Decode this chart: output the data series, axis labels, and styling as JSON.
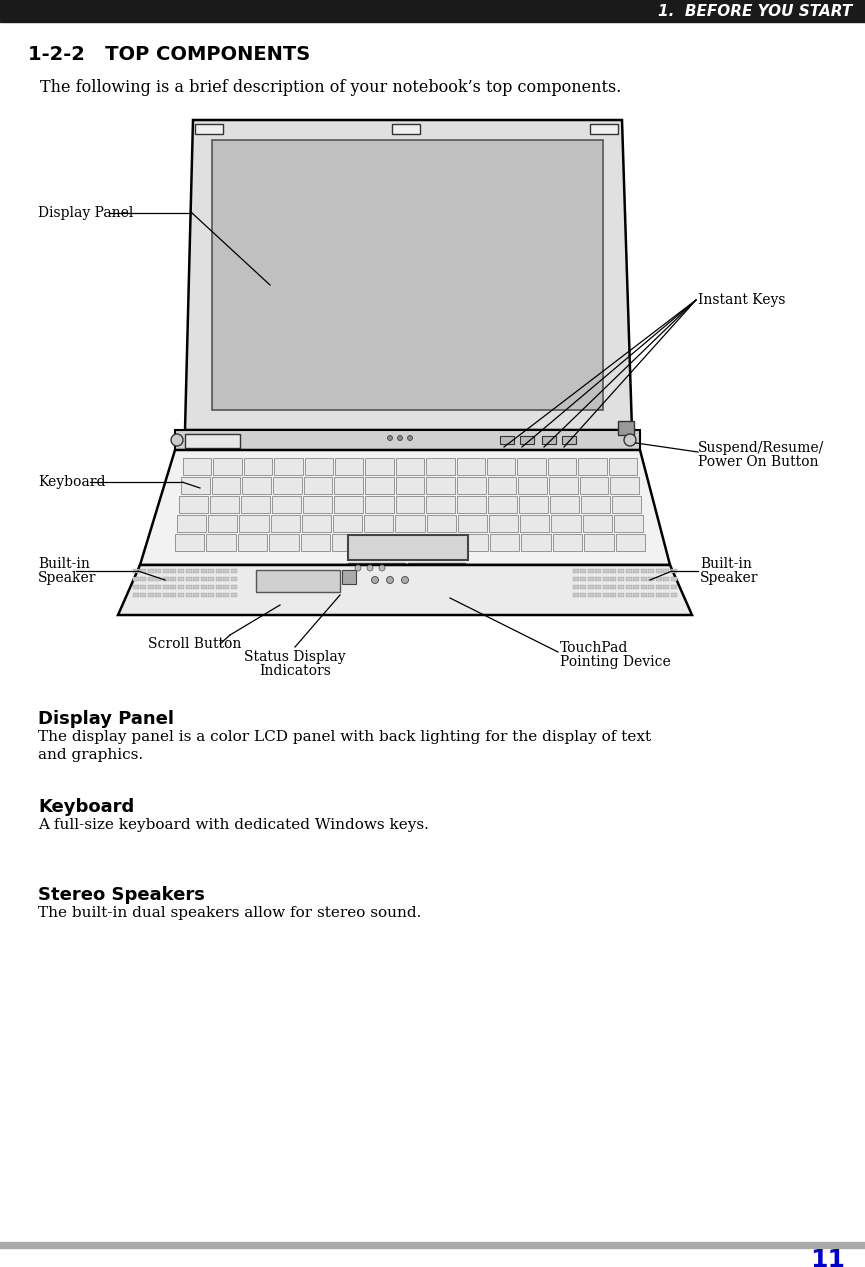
{
  "page_title": "1.  BEFORE YOU START",
  "section_title": "1-2-2   TOP COMPONENTS",
  "intro_text": "The following is a brief description of your notebook’s top components.",
  "bg_color": "#ffffff",
  "header_bar_color": "#1a1a1a",
  "footer_bar_color": "#aaaaaa",
  "page_number": "11",
  "page_number_color": "#0000cc",
  "labels": {
    "display_panel": "Display Panel",
    "instant_keys": "Instant Keys",
    "suspend_resume_1": "Suspend/Resume/",
    "suspend_resume_2": "Power On Button",
    "keyboard": "Keyboard",
    "built_in_left_1": "Built-in",
    "built_in_left_2": "Speaker",
    "built_in_right_1": "Built-in",
    "built_in_right_2": "Speaker",
    "scroll_button": "Scroll Button",
    "status_display_1": "Status Display",
    "status_display_2": "Indicators",
    "touchpad_1": "TouchPad",
    "touchpad_2": "Pointing Device"
  },
  "sections": [
    {
      "heading": "Display Panel",
      "body_lines": [
        "The display panel is a color LCD panel with back lighting for the display of text",
        "and graphics."
      ]
    },
    {
      "heading": "Keyboard",
      "body_lines": [
        "A full-size keyboard with dedicated Windows keys."
      ]
    },
    {
      "heading": "Stereo Speakers",
      "body_lines": [
        "The built-in dual speakers allow for stereo sound."
      ]
    }
  ]
}
